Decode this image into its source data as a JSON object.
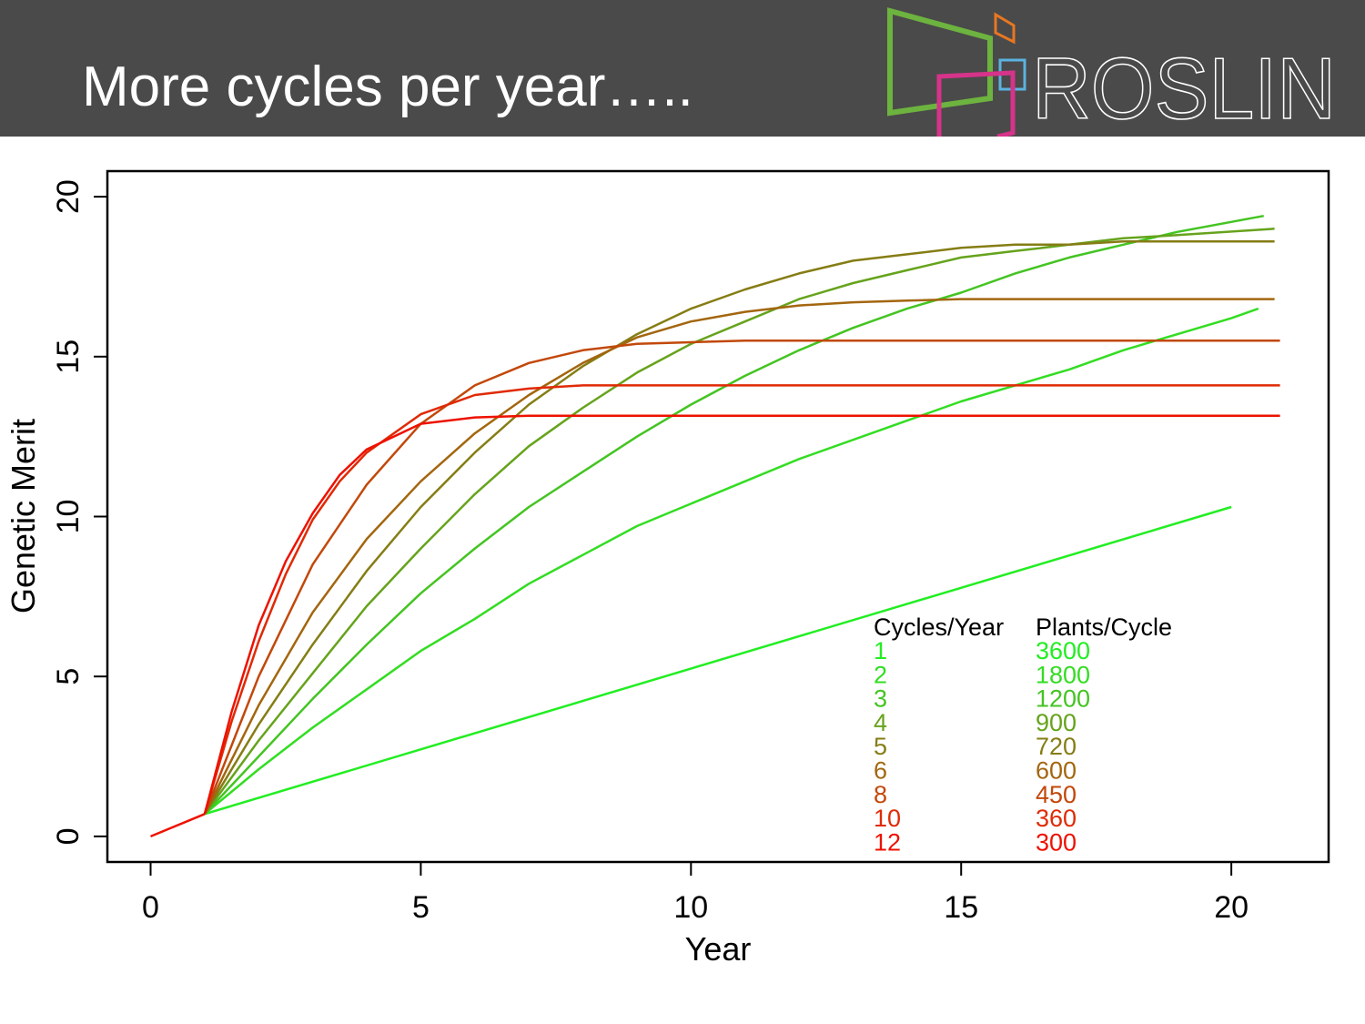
{
  "slide": {
    "title": "More cycles per year…..",
    "logo_text": "ROSLIN"
  },
  "colors": {
    "header_bg": "#4a4a4a",
    "logo_green": "#6db33f",
    "logo_orange": "#e87722",
    "logo_blue": "#5bb3e0",
    "logo_magenta": "#d6338a"
  },
  "chart_data": {
    "type": "line",
    "xlabel": "Year",
    "ylabel": "Genetic Merit",
    "xlim": [
      -0.8,
      21.8
    ],
    "ylim": [
      -0.8,
      20.8
    ],
    "x_ticks": [
      0,
      5,
      10,
      15,
      20
    ],
    "y_ticks": [
      0,
      5,
      10,
      15,
      20
    ],
    "grid": false,
    "legend": {
      "position": "bottom-right",
      "header_left": "Cycles/Year",
      "header_right": "Plants/Cycle",
      "entries": [
        {
          "cycles": "1",
          "plants": "3600",
          "color": "#22ee22"
        },
        {
          "cycles": "2",
          "plants": "1800",
          "color": "#33dd22"
        },
        {
          "cycles": "3",
          "plants": "1200",
          "color": "#44c422"
        },
        {
          "cycles": "4",
          "plants": "900",
          "color": "#66a31c"
        },
        {
          "cycles": "5",
          "plants": "720",
          "color": "#857d14"
        },
        {
          "cycles": "6",
          "plants": "600",
          "color": "#a3660f"
        },
        {
          "cycles": "8",
          "plants": "450",
          "color": "#c2480a"
        },
        {
          "cycles": "10",
          "plants": "360",
          "color": "#e02a05"
        },
        {
          "cycles": "12",
          "plants": "300",
          "color": "#ee1100"
        }
      ]
    },
    "shared_start": {
      "x": [
        0,
        1
      ],
      "y": [
        0,
        0.7
      ]
    },
    "series": [
      {
        "name": "1",
        "color": "#22ee22",
        "x": [
          1,
          20
        ],
        "y": [
          0.7,
          10.3
        ]
      },
      {
        "name": "2",
        "color": "#33dd22",
        "x": [
          1,
          2,
          3,
          4,
          5,
          6,
          7,
          8,
          9,
          10,
          11,
          12,
          13,
          14,
          15,
          16,
          17,
          18,
          19,
          20,
          20.5
        ],
        "y": [
          0.7,
          2.1,
          3.4,
          4.6,
          5.8,
          6.8,
          7.9,
          8.8,
          9.7,
          10.4,
          11.1,
          11.8,
          12.4,
          13.0,
          13.6,
          14.1,
          14.6,
          15.2,
          15.7,
          16.2,
          16.5
        ]
      },
      {
        "name": "3",
        "color": "#44c422",
        "x": [
          1,
          2,
          3,
          4,
          5,
          6,
          7,
          8,
          9,
          10,
          11,
          12,
          13,
          14,
          15,
          16,
          17,
          18,
          19,
          20.6
        ],
        "y": [
          0.7,
          2.5,
          4.3,
          6.0,
          7.6,
          9.0,
          10.3,
          11.4,
          12.5,
          13.5,
          14.4,
          15.2,
          15.9,
          16.5,
          17.0,
          17.6,
          18.1,
          18.5,
          18.9,
          19.4
        ]
      },
      {
        "name": "4",
        "color": "#66a31c",
        "x": [
          1,
          2,
          3,
          4,
          5,
          6,
          7,
          8,
          9,
          10,
          11,
          12,
          13,
          14,
          15,
          16,
          17,
          18,
          19,
          20.8
        ],
        "y": [
          0.7,
          3.0,
          5.1,
          7.2,
          9.0,
          10.7,
          12.2,
          13.4,
          14.5,
          15.4,
          16.1,
          16.8,
          17.3,
          17.7,
          18.1,
          18.3,
          18.5,
          18.7,
          18.8,
          19.0
        ]
      },
      {
        "name": "5",
        "color": "#857d14",
        "x": [
          1,
          2,
          3,
          4,
          5,
          6,
          7,
          8,
          9,
          10,
          11,
          12,
          13,
          14,
          15,
          16,
          17,
          18,
          19,
          20.8
        ],
        "y": [
          0.7,
          3.5,
          6.0,
          8.3,
          10.3,
          12.0,
          13.5,
          14.7,
          15.7,
          16.5,
          17.1,
          17.6,
          18.0,
          18.2,
          18.4,
          18.5,
          18.5,
          18.6,
          18.6,
          18.6
        ]
      },
      {
        "name": "6",
        "color": "#a3660f",
        "x": [
          1,
          2,
          3,
          4,
          5,
          6,
          7,
          8,
          9,
          10,
          11,
          12,
          13,
          14,
          15,
          16,
          17,
          18,
          19,
          20.8
        ],
        "y": [
          0.7,
          4.1,
          7.0,
          9.3,
          11.1,
          12.6,
          13.8,
          14.8,
          15.6,
          16.1,
          16.4,
          16.6,
          16.7,
          16.75,
          16.8,
          16.8,
          16.8,
          16.8,
          16.8,
          16.8
        ]
      },
      {
        "name": "8",
        "color": "#c2480a",
        "x": [
          1,
          2,
          3,
          4,
          5,
          6,
          7,
          8,
          9,
          10,
          11,
          12,
          14,
          16,
          18,
          20,
          20.9
        ],
        "y": [
          0.7,
          5.0,
          8.5,
          11.0,
          12.9,
          14.1,
          14.8,
          15.2,
          15.4,
          15.45,
          15.5,
          15.5,
          15.5,
          15.5,
          15.5,
          15.5,
          15.5
        ]
      },
      {
        "name": "10",
        "color": "#e02a05",
        "x": [
          1,
          1.5,
          2,
          2.5,
          3,
          3.5,
          4,
          5,
          6,
          7,
          8,
          9,
          10,
          12,
          14,
          16,
          18,
          20,
          20.9
        ],
        "y": [
          0.7,
          3.6,
          6.1,
          8.2,
          9.9,
          11.1,
          12.0,
          13.2,
          13.8,
          14.0,
          14.1,
          14.1,
          14.1,
          14.1,
          14.1,
          14.1,
          14.1,
          14.1,
          14.1
        ]
      },
      {
        "name": "12",
        "color": "#ee1100",
        "x": [
          1,
          1.5,
          2,
          2.5,
          3,
          3.5,
          4,
          5,
          6,
          7,
          8,
          10,
          12,
          14,
          16,
          18,
          20,
          20.9
        ],
        "y": [
          0.7,
          3.9,
          6.6,
          8.6,
          10.1,
          11.3,
          12.1,
          12.9,
          13.1,
          13.15,
          13.15,
          13.15,
          13.15,
          13.15,
          13.15,
          13.15,
          13.15,
          13.15
        ]
      }
    ]
  }
}
